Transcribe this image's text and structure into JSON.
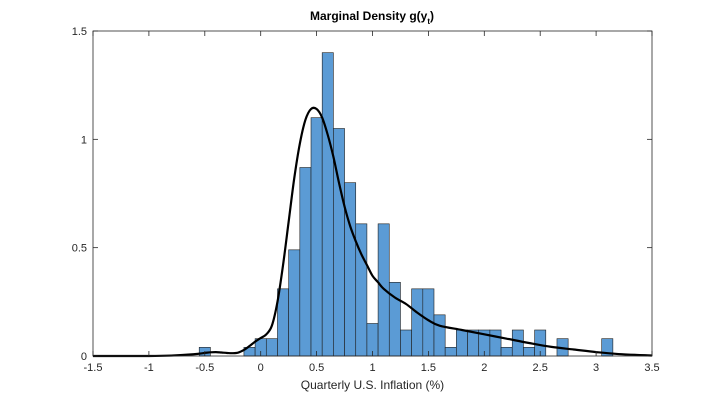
{
  "chart_data": {
    "type": "bar",
    "title": "Marginal Density g(y",
    "title_subscript": "t",
    "title_suffix": ")",
    "xlabel": "Quarterly U.S. Inflation (%)",
    "ylabel": "",
    "xlim": [
      -1.5,
      3.5
    ],
    "ylim": [
      0,
      1.5
    ],
    "xticks": [
      -1.5,
      -1,
      -0.5,
      0,
      0.5,
      1,
      1.5,
      2,
      2.5,
      3,
      3.5
    ],
    "xtick_labels": [
      "-1.5",
      "-1",
      "-0.5",
      "0",
      "0.5",
      "1",
      "1.5",
      "2",
      "2.5",
      "3",
      "3.5"
    ],
    "yticks": [
      0,
      0.5,
      1,
      1.5
    ],
    "ytick_labels": [
      "0",
      "0.5",
      "1",
      "1.5"
    ],
    "grid": false,
    "bar_color": "#5b9bd5",
    "bar_edge_color": "#1f1f1f",
    "line_color": "#000000",
    "histogram": {
      "bin_width": 0.1,
      "bins": [
        {
          "left": -0.55,
          "value": 0.04
        },
        {
          "left": -0.15,
          "value": 0.04
        },
        {
          "left": -0.05,
          "value": 0.08
        },
        {
          "left": 0.05,
          "value": 0.08
        },
        {
          "left": 0.15,
          "value": 0.31
        },
        {
          "left": 0.25,
          "value": 0.49
        },
        {
          "left": 0.35,
          "value": 0.87
        },
        {
          "left": 0.45,
          "value": 1.1
        },
        {
          "left": 0.55,
          "value": 1.4
        },
        {
          "left": 0.65,
          "value": 1.05
        },
        {
          "left": 0.75,
          "value": 0.8
        },
        {
          "left": 0.85,
          "value": 0.61
        },
        {
          "left": 0.95,
          "value": 0.15
        },
        {
          "left": 1.05,
          "value": 0.61
        },
        {
          "left": 1.15,
          "value": 0.34
        },
        {
          "left": 1.25,
          "value": 0.12
        },
        {
          "left": 1.35,
          "value": 0.31
        },
        {
          "left": 1.45,
          "value": 0.31
        },
        {
          "left": 1.55,
          "value": 0.19
        },
        {
          "left": 1.65,
          "value": 0.04
        },
        {
          "left": 1.75,
          "value": 0.12
        },
        {
          "left": 1.85,
          "value": 0.12
        },
        {
          "left": 1.95,
          "value": 0.12
        },
        {
          "left": 2.05,
          "value": 0.12
        },
        {
          "left": 2.15,
          "value": 0.04
        },
        {
          "left": 2.25,
          "value": 0.12
        },
        {
          "left": 2.35,
          "value": 0.04
        },
        {
          "left": 2.45,
          "value": 0.12
        },
        {
          "left": 2.65,
          "value": 0.08
        },
        {
          "left": 3.05,
          "value": 0.08
        }
      ]
    },
    "density": {
      "x": [
        -1.5,
        -1.0,
        -0.8,
        -0.6,
        -0.5,
        -0.45,
        -0.4,
        -0.35,
        -0.3,
        -0.25,
        -0.2,
        -0.15,
        -0.1,
        -0.05,
        0.0,
        0.05,
        0.1,
        0.15,
        0.2,
        0.25,
        0.3,
        0.35,
        0.4,
        0.45,
        0.5,
        0.55,
        0.6,
        0.65,
        0.7,
        0.75,
        0.8,
        0.85,
        0.9,
        0.95,
        1.0,
        1.05,
        1.1,
        1.2,
        1.3,
        1.4,
        1.5,
        1.6,
        1.8,
        2.0,
        2.2,
        2.4,
        2.6,
        2.8,
        3.0,
        3.2,
        3.5
      ],
      "y": [
        0.0,
        0.0,
        0.002,
        0.008,
        0.014,
        0.017,
        0.018,
        0.016,
        0.014,
        0.013,
        0.016,
        0.028,
        0.046,
        0.066,
        0.083,
        0.1,
        0.14,
        0.25,
        0.42,
        0.62,
        0.82,
        0.98,
        1.09,
        1.14,
        1.14,
        1.1,
        1.02,
        0.92,
        0.8,
        0.69,
        0.6,
        0.53,
        0.47,
        0.42,
        0.37,
        0.34,
        0.31,
        0.27,
        0.24,
        0.2,
        0.165,
        0.14,
        0.12,
        0.1,
        0.08,
        0.06,
        0.042,
        0.03,
        0.018,
        0.009,
        0.002
      ]
    }
  }
}
